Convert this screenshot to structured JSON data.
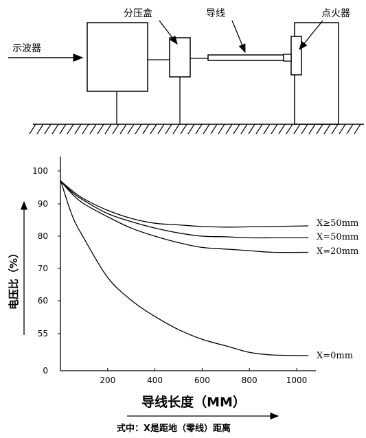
{
  "diagram": {
    "labels": {
      "oscilloscope": "示波器",
      "voltage_divider_box": "分压盒",
      "wire": "导线",
      "igniter": "点火器"
    }
  },
  "chart_data": {
    "type": "line",
    "xlabel": "导线长度（MM）",
    "ylabel": "电压比（%）",
    "note": "式中：X是距地（零线）距离",
    "x_ticks": [
      200,
      400,
      600,
      800,
      1000
    ],
    "y_ticks": [
      0,
      55,
      60,
      70,
      80,
      90,
      100
    ],
    "series": [
      {
        "name": "X≥50mm",
        "x": [
          0,
          50,
          100,
          200,
          300,
          400,
          500,
          600,
          700,
          800,
          900,
          1050
        ],
        "values": [
          97,
          94,
          91.5,
          88,
          85.5,
          84,
          83.5,
          83,
          82.8,
          82.9,
          83,
          83.2
        ]
      },
      {
        "name": "X=50mm",
        "x": [
          0,
          50,
          100,
          200,
          300,
          400,
          500,
          600,
          700,
          800,
          900,
          1050
        ],
        "values": [
          97,
          93.5,
          91,
          87,
          84.5,
          82.5,
          81,
          80,
          79.8,
          79.5,
          79.5,
          79.5
        ]
      },
      {
        "name": "X=20mm",
        "x": [
          0,
          50,
          100,
          200,
          300,
          400,
          500,
          600,
          700,
          800,
          900,
          1050
        ],
        "values": [
          97,
          93,
          90,
          86,
          82.5,
          80,
          78,
          76.5,
          76,
          75.5,
          75,
          75
        ]
      },
      {
        "name": "X=0mm",
        "x": [
          0,
          50,
          100,
          200,
          300,
          400,
          500,
          600,
          700,
          800,
          900,
          1050
        ],
        "values": [
          97,
          86,
          79,
          67,
          60,
          55,
          51,
          48,
          46,
          44,
          43.2,
          43
        ]
      }
    ]
  }
}
